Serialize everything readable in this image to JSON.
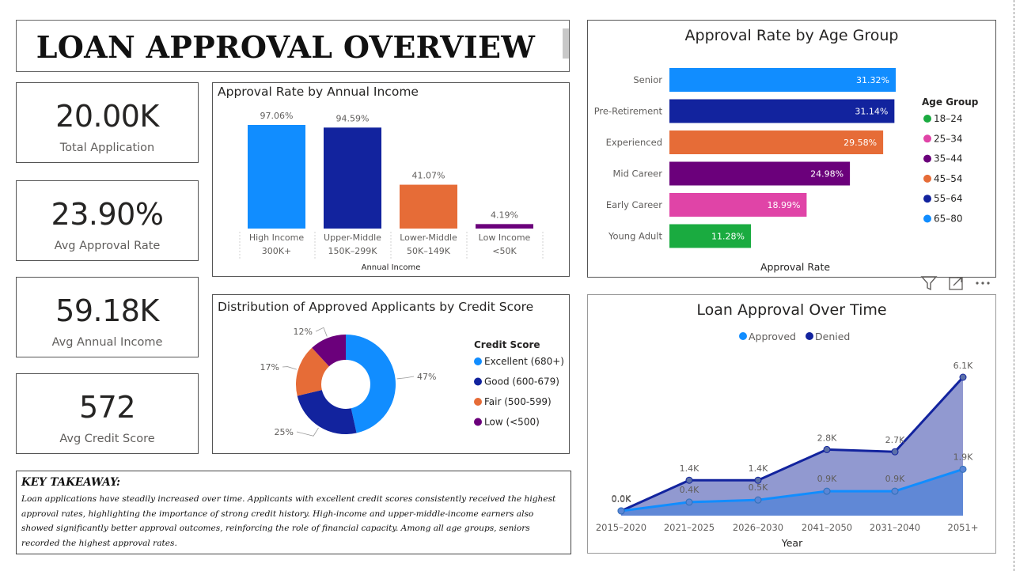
{
  "title": "LOAN APPROVAL OVERVIEW",
  "kpis": [
    {
      "value": "20.00K",
      "label": "Total Application"
    },
    {
      "value": "23.90%",
      "label": "Avg Approval Rate"
    },
    {
      "value": "59.18K",
      "label": "Avg Annual Income"
    },
    {
      "value": "572",
      "label": "Avg Credit Score"
    }
  ],
  "income_chart": {
    "title": "Approval Rate by Annual Income",
    "xlabel": "Annual Income",
    "chart_data": {
      "type": "bar",
      "categories": [
        "High Income 300K+",
        "Upper-Middle 150K–299K",
        "Lower-Middle 50K–149K",
        "Low Income <50K"
      ],
      "category_lines": [
        [
          "High Income",
          "300K+"
        ],
        [
          "Upper-Middle",
          "150K–299K"
        ],
        [
          "Lower-Middle",
          "50K–149K"
        ],
        [
          "Low Income",
          "<50K"
        ]
      ],
      "values": [
        97.06,
        94.59,
        41.07,
        4.19
      ],
      "data_labels": [
        "97.06%",
        "94.59%",
        "41.07%",
        "4.19%"
      ],
      "colors": [
        "#118DFF",
        "#12239E",
        "#E66C37",
        "#6B007B"
      ],
      "ylim": [
        0,
        100
      ]
    }
  },
  "credit_chart": {
    "title": "Distribution of Approved Applicants by Credit Score",
    "legend_title": "Credit Score",
    "chart_data": {
      "type": "pie",
      "labels": [
        "Excellent (680+)",
        "Good (600-679)",
        "Fair (500-599)",
        "Low (<500)"
      ],
      "values": [
        47,
        25,
        17,
        12
      ],
      "data_labels": [
        "47%",
        "25%",
        "17%",
        "12%"
      ],
      "colors": [
        "#118DFF",
        "#12239E",
        "#E66C37",
        "#6B007B"
      ]
    }
  },
  "age_chart": {
    "title": "Approval Rate by Age Group",
    "xlabel": "Approval Rate",
    "legend_title": "Age Group",
    "legend": [
      {
        "label": "18–24",
        "color": "#1AAB40"
      },
      {
        "label": "25–34",
        "color": "#E044A7"
      },
      {
        "label": "35–44",
        "color": "#6B007B"
      },
      {
        "label": "45–54",
        "color": "#E66C37"
      },
      {
        "label": "55–64",
        "color": "#12239E"
      },
      {
        "label": "65–80",
        "color": "#118DFF"
      }
    ],
    "chart_data": {
      "type": "bar",
      "orientation": "horizontal",
      "categories": [
        "Senior",
        "Pre-Retirement",
        "Experienced",
        "Mid Career",
        "Early Career",
        "Young Adult"
      ],
      "values": [
        31.32,
        31.14,
        29.58,
        24.98,
        18.99,
        11.28
      ],
      "data_labels": [
        "31.32%",
        "31.14%",
        "29.58%",
        "24.98%",
        "18.99%",
        "11.28%"
      ],
      "colors": [
        "#118DFF",
        "#12239E",
        "#E66C37",
        "#6B007B",
        "#E044A7",
        "#1AAB40"
      ]
    }
  },
  "time_chart": {
    "title": "Loan Approval Over Time",
    "xlabel": "Year",
    "chart_data": {
      "type": "area",
      "categories": [
        "2015–2020",
        "2021–2025",
        "2026–2030",
        "2041–2050",
        "2031–2040",
        "2051+"
      ],
      "series": [
        {
          "name": "Approved",
          "color": "#118DFF",
          "values": [
            0.0,
            0.4,
            0.5,
            0.9,
            0.9,
            1.9
          ],
          "data_labels": [
            "0.0K",
            "0.4K",
            "0.5K",
            "0.9K",
            "0.9K",
            "1.9K"
          ]
        },
        {
          "name": "Denied",
          "color": "#12239E",
          "values": [
            0.0,
            1.4,
            1.4,
            2.8,
            2.7,
            6.1
          ],
          "data_labels": [
            "0.0K",
            "1.4K",
            "1.4K",
            "2.8K",
            "2.7K",
            "6.1K"
          ]
        }
      ]
    }
  },
  "takeaway": {
    "title": "KEY TAKEAWAY:",
    "body": "Loan applications have steadily increased over time. Applicants with excellent credit scores consistently received the highest approval rates, highlighting the importance of strong credit history. High-income and upper-middle-income earners also showed significantly better approval outcomes, reinforcing the role of financial capacity. Among all age groups, seniors recorded the highest approval rates."
  },
  "icons": [
    "filter-icon",
    "focus-mode-icon",
    "more-options-icon"
  ]
}
